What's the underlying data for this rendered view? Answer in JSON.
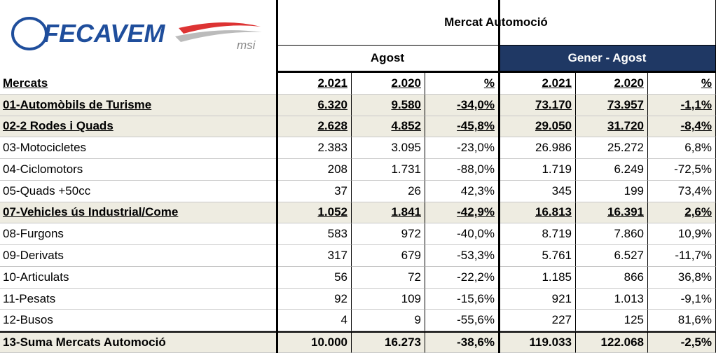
{
  "logo": {
    "name": "FECAVEM",
    "sub": "msi"
  },
  "header": {
    "title": "Mercat Automoció",
    "group1": "Agost",
    "group2": "Gener - Agost"
  },
  "table": {
    "columns": [
      "Mercats",
      "2.021",
      "2.020",
      "%",
      "2.021",
      "2.020",
      "%"
    ],
    "rows": [
      [
        "01-Automòbils de Turisme",
        "6.320",
        "9.580",
        "-34,0%",
        "73.170",
        "73.957",
        "-1,1%"
      ],
      [
        "02-2 Rodes i Quads",
        "2.628",
        "4.852",
        "-45,8%",
        "29.050",
        "31.720",
        "-8,4%"
      ],
      [
        "03-Motocicletes",
        "2.383",
        "3.095",
        "-23,0%",
        "26.986",
        "25.272",
        "6,8%"
      ],
      [
        "04-Ciclomotors",
        "208",
        "1.731",
        "-88,0%",
        "1.719",
        "6.249",
        "-72,5%"
      ],
      [
        "05-Quads +50cc",
        "37",
        "26",
        "42,3%",
        "345",
        "199",
        "73,4%"
      ],
      [
        "07-Vehicles ús Industrial/Come",
        "1.052",
        "1.841",
        "-42,9%",
        "16.813",
        "16.391",
        "2,6%"
      ],
      [
        "08-Furgons",
        "583",
        "972",
        "-40,0%",
        "8.719",
        "7.860",
        "10,9%"
      ],
      [
        "09-Derivats",
        "317",
        "679",
        "-53,3%",
        "5.761",
        "6.527",
        "-11,7%"
      ],
      [
        "10-Articulats",
        "56",
        "72",
        "-22,2%",
        "1.185",
        "866",
        "36,8%"
      ],
      [
        "11-Pesats",
        "92",
        "109",
        "-15,6%",
        "921",
        "1.013",
        "-9,1%"
      ],
      [
        "12-Busos",
        "4",
        "9",
        "-55,6%",
        "227",
        "125",
        "81,6%"
      ],
      [
        "13-Suma Mercats Automoció",
        "10.000",
        "16.273",
        "-38,6%",
        "119.033",
        "122.068",
        "-2,5%"
      ]
    ]
  }
}
